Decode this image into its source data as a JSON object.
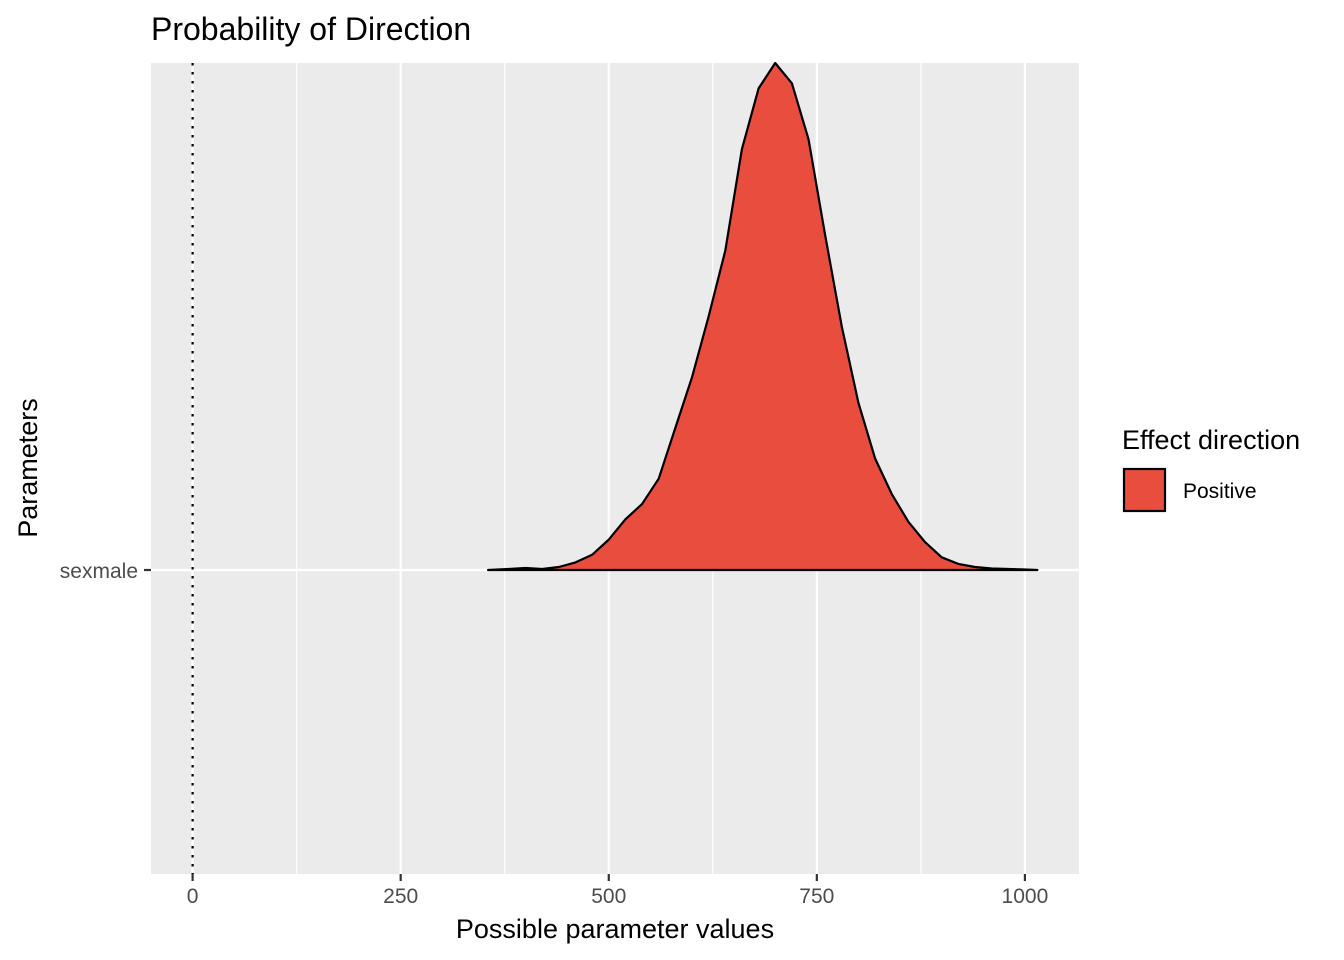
{
  "chart_data": {
    "type": "area",
    "title": "Probability of Direction",
    "xlabel": "Possible parameter values",
    "ylabel": "Parameters",
    "xlim": [
      -50,
      1065
    ],
    "x_ticks": [
      0,
      250,
      500,
      750,
      1000
    ],
    "x_tick_labels": [
      "0",
      "250",
      "500",
      "750",
      "1000"
    ],
    "y_categories": [
      "sexmale"
    ],
    "grid": true,
    "reference_line": {
      "x": 0,
      "style": "dotted"
    },
    "legend": {
      "title": "Effect direction",
      "placement": "right",
      "entries": [
        {
          "label": "Positive",
          "color": "#E84D3D"
        }
      ]
    },
    "series": [
      {
        "category": "sexmale",
        "color": "#E84D3D",
        "x": [
          355,
          380,
          400,
          420,
          440,
          460,
          480,
          500,
          520,
          540,
          560,
          580,
          600,
          620,
          640,
          660,
          680,
          700,
          720,
          740,
          760,
          780,
          800,
          820,
          840,
          860,
          880,
          900,
          920,
          940,
          960,
          980,
          1000,
          1015
        ],
        "density": [
          0.0,
          0.002,
          0.004,
          0.002,
          0.006,
          0.015,
          0.03,
          0.06,
          0.1,
          0.13,
          0.18,
          0.28,
          0.38,
          0.5,
          0.63,
          0.83,
          0.95,
          1.0,
          0.96,
          0.85,
          0.66,
          0.48,
          0.33,
          0.22,
          0.15,
          0.095,
          0.055,
          0.025,
          0.012,
          0.006,
          0.003,
          0.002,
          0.001,
          0.0
        ]
      }
    ]
  }
}
